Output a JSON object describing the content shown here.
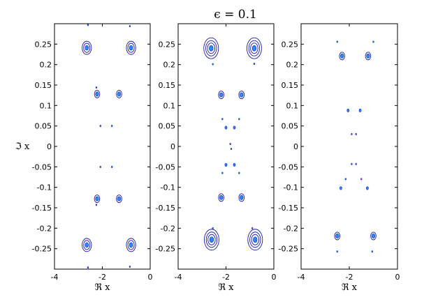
{
  "chart_data": {
    "type": "scatter",
    "title": "ϵ = 0.1",
    "panels": [
      {
        "xlabel": "ℜ x",
        "ylabel": "ℑ x",
        "xlim": [
          -4,
          0
        ],
        "ylim": [
          -0.3,
          0.3
        ],
        "xticks": [
          "-4",
          "-2",
          "0"
        ],
        "yticks": [
          "0.25",
          "0.2",
          "0.15",
          "0.1",
          "0.05",
          "0",
          "-0.05",
          "-0.1",
          "-0.15",
          "-0.2",
          "-0.25"
        ],
        "points": [
          {
            "x": -2.6,
            "y": 0.297,
            "size": "tiny"
          },
          {
            "x": -0.85,
            "y": 0.294,
            "size": "tiny"
          },
          {
            "x": -2.65,
            "y": 0.241,
            "size": "large"
          },
          {
            "x": -0.8,
            "y": 0.241,
            "size": "large"
          },
          {
            "x": -2.25,
            "y": 0.144,
            "size": "tiny"
          },
          {
            "x": -2.22,
            "y": 0.128,
            "size": "medium"
          },
          {
            "x": -1.3,
            "y": 0.128,
            "size": "medium"
          },
          {
            "x": -2.08,
            "y": 0.05,
            "size": "tiny"
          },
          {
            "x": -1.6,
            "y": 0.05,
            "size": "tiny"
          },
          {
            "x": -2.08,
            "y": -0.05,
            "size": "tiny"
          },
          {
            "x": -1.6,
            "y": -0.05,
            "size": "tiny"
          },
          {
            "x": -2.22,
            "y": -0.128,
            "size": "medium"
          },
          {
            "x": -1.3,
            "y": -0.128,
            "size": "medium"
          },
          {
            "x": -2.25,
            "y": -0.143,
            "size": "tiny"
          },
          {
            "x": -2.65,
            "y": -0.241,
            "size": "large"
          },
          {
            "x": -0.8,
            "y": -0.241,
            "size": "large"
          },
          {
            "x": -2.6,
            "y": -0.296,
            "size": "tiny"
          },
          {
            "x": -0.85,
            "y": -0.294,
            "size": "tiny"
          }
        ]
      },
      {
        "xlabel": "ℜ x",
        "ylabel": "",
        "xlim": [
          -4,
          0
        ],
        "ylim": [
          -0.3,
          0.3
        ],
        "xticks": [
          "-4",
          "-2",
          "0"
        ],
        "yticks": [
          "0.25",
          "0.2",
          "0.15",
          "0.1",
          "0.05",
          "0",
          "-0.05",
          "-0.1",
          "-0.15",
          "-0.2",
          "-0.25"
        ],
        "points": [
          {
            "x": -2.62,
            "y": 0.24,
            "size": "xlarge"
          },
          {
            "x": -2.55,
            "y": 0.201,
            "size": "tiny"
          },
          {
            "x": -0.82,
            "y": 0.24,
            "size": "xlarge"
          },
          {
            "x": -0.82,
            "y": 0.202,
            "size": "tiny"
          },
          {
            "x": -2.2,
            "y": 0.126,
            "size": "medium"
          },
          {
            "x": -1.35,
            "y": 0.126,
            "size": "medium"
          },
          {
            "x": -2.15,
            "y": 0.067,
            "size": "tiny"
          },
          {
            "x": -1.45,
            "y": 0.067,
            "size": "tiny"
          },
          {
            "x": -2.0,
            "y": 0.046,
            "size": "small"
          },
          {
            "x": -1.65,
            "y": 0.046,
            "size": "small"
          },
          {
            "x": -1.82,
            "y": 0.006,
            "size": "tiny"
          },
          {
            "x": -1.78,
            "y": -0.006,
            "size": "tiny"
          },
          {
            "x": -2.0,
            "y": -0.045,
            "size": "small"
          },
          {
            "x": -1.65,
            "y": -0.045,
            "size": "small"
          },
          {
            "x": -2.15,
            "y": -0.065,
            "size": "tiny"
          },
          {
            "x": -1.45,
            "y": -0.065,
            "size": "tiny"
          },
          {
            "x": -2.2,
            "y": -0.125,
            "size": "medium"
          },
          {
            "x": -1.35,
            "y": -0.125,
            "size": "medium"
          },
          {
            "x": -2.6,
            "y": -0.228,
            "size": "xlarge"
          },
          {
            "x": -2.55,
            "y": -0.2,
            "size": "tiny"
          },
          {
            "x": -0.78,
            "y": -0.228,
            "size": "xlarge"
          },
          {
            "x": -0.9,
            "y": -0.2,
            "size": "tiny"
          }
        ]
      },
      {
        "xlabel": "ℜ x",
        "ylabel": "",
        "xlim": [
          -4,
          0
        ],
        "ylim": [
          -0.3,
          0.3
        ],
        "xticks": [
          "-4",
          "-2",
          "0"
        ],
        "yticks": [
          "0.25",
          "0.2",
          "0.15",
          "0.1",
          "0.05",
          "0",
          "-0.05",
          "-0.1",
          "-0.15",
          "-0.2",
          "-0.25"
        ],
        "points": [
          {
            "x": -2.5,
            "y": 0.256,
            "size": "tiny"
          },
          {
            "x": -1.0,
            "y": 0.256,
            "size": "tiny"
          },
          {
            "x": -2.3,
            "y": 0.221,
            "size": "medium"
          },
          {
            "x": -1.22,
            "y": 0.221,
            "size": "medium"
          },
          {
            "x": -2.05,
            "y": 0.088,
            "size": "small"
          },
          {
            "x": -1.55,
            "y": 0.088,
            "size": "small"
          },
          {
            "x": -1.9,
            "y": 0.03,
            "size": "tiny"
          },
          {
            "x": -1.72,
            "y": 0.03,
            "size": "tiny"
          },
          {
            "x": -1.9,
            "y": -0.043,
            "size": "tiny"
          },
          {
            "x": -1.72,
            "y": -0.043,
            "size": "tiny"
          },
          {
            "x": -2.15,
            "y": -0.08,
            "size": "tiny"
          },
          {
            "x": -1.5,
            "y": -0.08,
            "size": "tiny"
          },
          {
            "x": -2.35,
            "y": -0.102,
            "size": "small"
          },
          {
            "x": -1.25,
            "y": -0.102,
            "size": "small"
          },
          {
            "x": -2.5,
            "y": -0.219,
            "size": "medium"
          },
          {
            "x": -1.0,
            "y": -0.219,
            "size": "medium"
          },
          {
            "x": -2.5,
            "y": -0.257,
            "size": "tiny"
          },
          {
            "x": -1.05,
            "y": -0.257,
            "size": "tiny"
          }
        ]
      }
    ],
    "grid": false,
    "colors": {
      "contour": "#1a1aa8",
      "core": "#1e90ff",
      "axis": "#000000"
    }
  }
}
